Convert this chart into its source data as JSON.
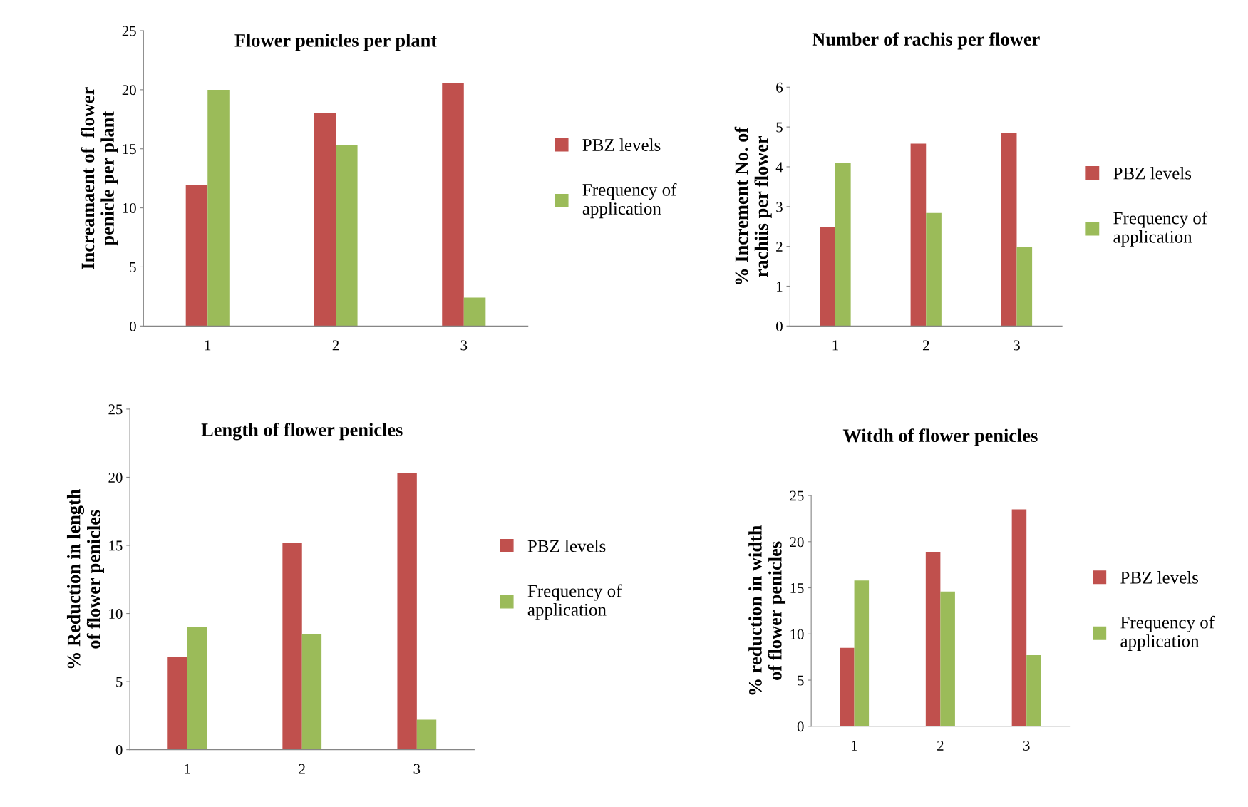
{
  "chart_data": [
    {
      "type": "bar",
      "title": "Flower penicles per plant",
      "ylabel": "Increamaent of  flower penicle per plant",
      "categories": [
        "1",
        "2",
        "3"
      ],
      "ylim": [
        0,
        25
      ],
      "yticks": [
        0,
        5,
        10,
        15,
        20,
        25
      ],
      "legend": "right",
      "grid": false,
      "series": [
        {
          "name": "PBZ levels",
          "color": "#c0504d",
          "values": [
            11.9,
            18.0,
            20.6
          ]
        },
        {
          "name": "Frequency of application",
          "color": "#9bbb59",
          "values": [
            20.0,
            15.3,
            2.4
          ]
        }
      ]
    },
    {
      "type": "bar",
      "title": "Number of rachis per flower",
      "ylabel": "% Increment No. of rachiis per flower",
      "categories": [
        "1",
        "2",
        "3"
      ],
      "ylim": [
        0,
        6
      ],
      "yticks": [
        0,
        1,
        2,
        3,
        4,
        5,
        6
      ],
      "legend": "right",
      "grid": false,
      "series": [
        {
          "name": "PBZ levels",
          "color": "#c0504d",
          "values": [
            2.48,
            4.58,
            4.84
          ]
        },
        {
          "name": "Frequency of application",
          "color": "#9bbb59",
          "values": [
            4.1,
            2.84,
            1.98
          ]
        }
      ]
    },
    {
      "type": "bar",
      "title": "Length of flower penicles",
      "ylabel": "% Reduction in length of flower penicles",
      "categories": [
        "1",
        "2",
        "3"
      ],
      "ylim": [
        0,
        25
      ],
      "yticks": [
        0,
        5,
        10,
        15,
        20,
        25
      ],
      "legend": "right",
      "grid": false,
      "series": [
        {
          "name": "PBZ levels",
          "color": "#c0504d",
          "values": [
            6.8,
            15.2,
            20.3
          ]
        },
        {
          "name": "Frequency of application",
          "color": "#9bbb59",
          "values": [
            9.0,
            8.5,
            2.2
          ]
        }
      ]
    },
    {
      "type": "bar",
      "title": "Witdh of flower penicles",
      "ylabel": "% reduction in width of flower penicles",
      "categories": [
        "1",
        "2",
        "3"
      ],
      "ylim": [
        0,
        25
      ],
      "yticks": [
        0,
        5,
        10,
        15,
        20,
        25
      ],
      "legend": "right",
      "grid": false,
      "series": [
        {
          "name": "PBZ levels",
          "color": "#c0504d",
          "values": [
            8.5,
            18.9,
            23.5
          ]
        },
        {
          "name": "Frequency of application",
          "color": "#9bbb59",
          "values": [
            15.8,
            14.6,
            7.7
          ]
        }
      ]
    }
  ]
}
